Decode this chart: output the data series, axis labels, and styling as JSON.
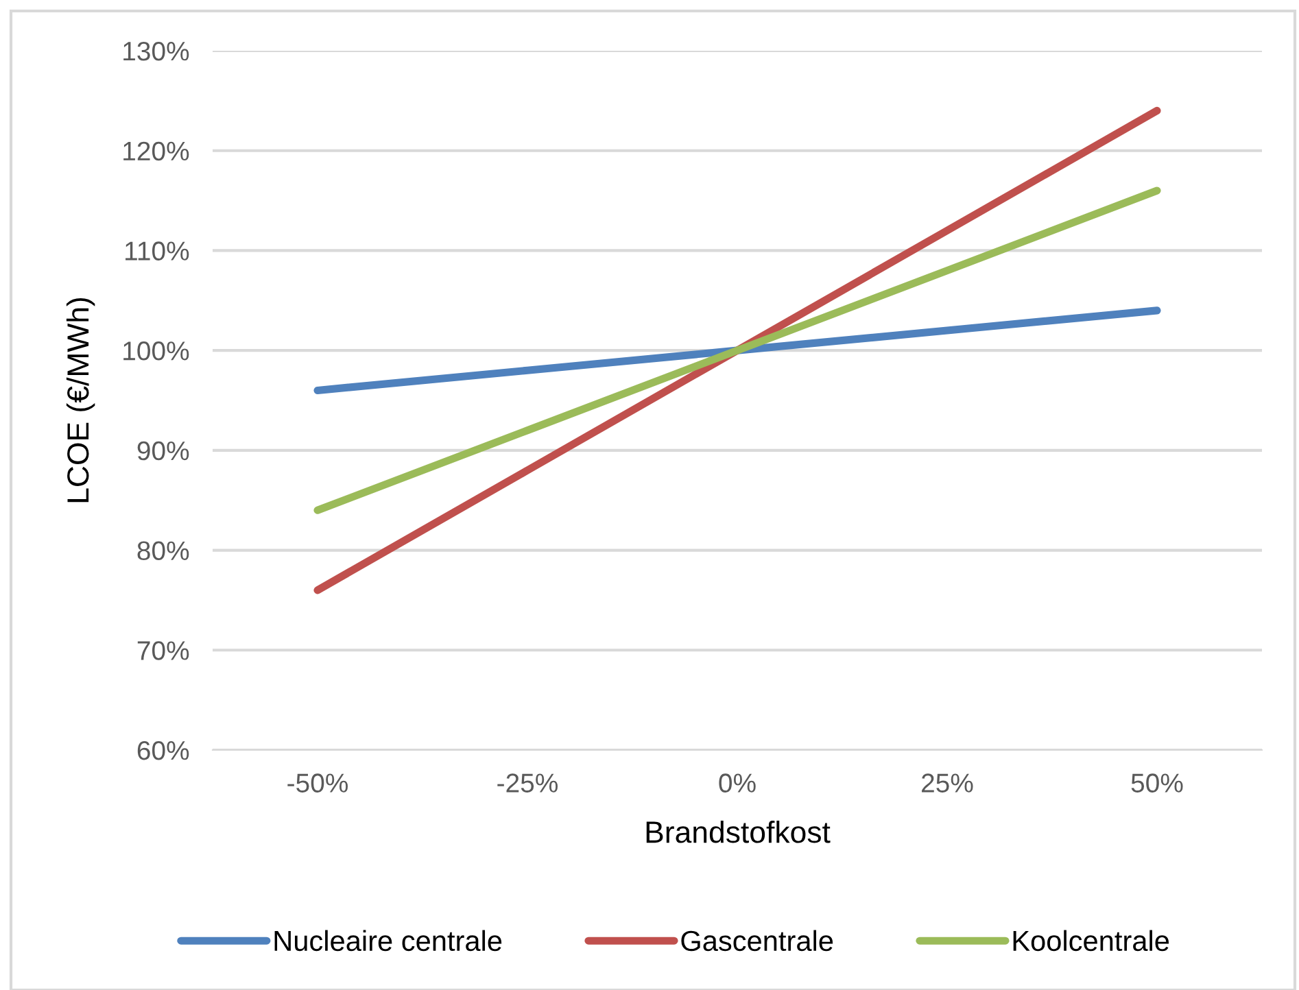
{
  "chart_data": {
    "type": "line",
    "xlabel": "Brandstofkost",
    "ylabel": "LCOE (€/MWh)",
    "categories": [
      "-50%",
      "-25%",
      "0%",
      "25%",
      "50%"
    ],
    "series": [
      {
        "name": "Nucleaire centrale",
        "color": "#4f81bd",
        "values": [
          96,
          98,
          100,
          102,
          104
        ]
      },
      {
        "name": "Gascentrale",
        "color": "#c0504d",
        "values": [
          76,
          88,
          100,
          112,
          124
        ]
      },
      {
        "name": "Koolcentrale",
        "color": "#9bbb59",
        "values": [
          84,
          92,
          100,
          108,
          116
        ]
      }
    ],
    "ylim": [
      60,
      130
    ],
    "yticks": [
      {
        "value": 60,
        "label": "60%"
      },
      {
        "value": 70,
        "label": "70%"
      },
      {
        "value": 80,
        "label": "80%"
      },
      {
        "value": 90,
        "label": "90%"
      },
      {
        "value": 100,
        "label": "100%"
      },
      {
        "value": 110,
        "label": "110%"
      },
      {
        "value": 120,
        "label": "120%"
      },
      {
        "value": 130,
        "label": "130%"
      }
    ],
    "grid": "y",
    "legend": "bottom",
    "marker": "none",
    "line_style": "solid"
  }
}
